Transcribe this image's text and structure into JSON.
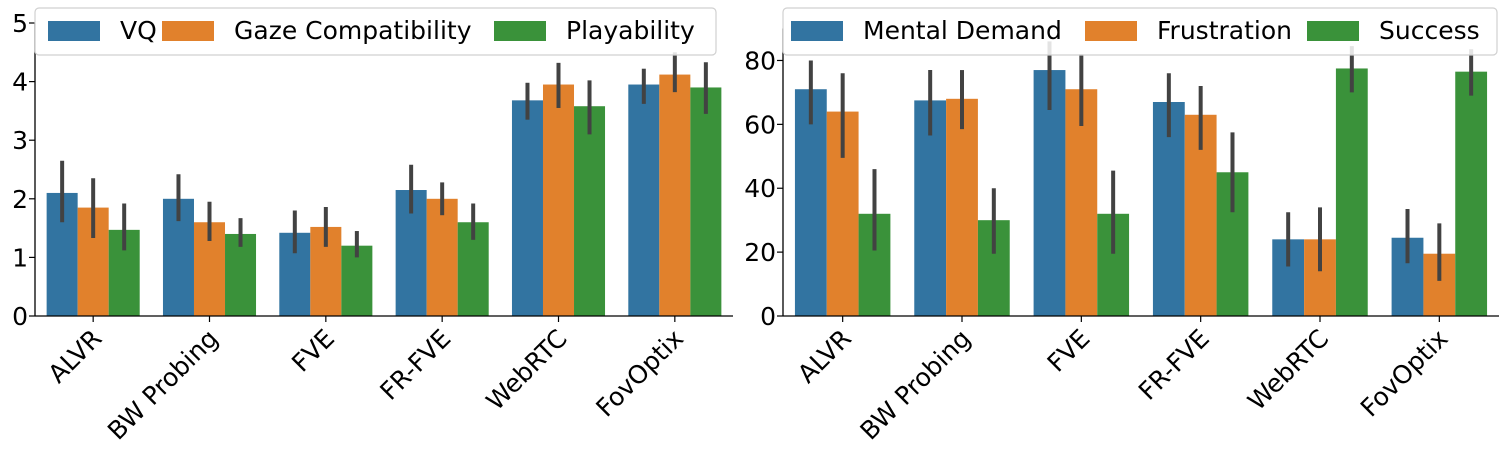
{
  "chart_data": [
    {
      "type": "bar",
      "categories": [
        "ALVR",
        "BW Probing",
        "FVE",
        "FR-FVE",
        "WebRTC",
        "FovOptix"
      ],
      "ylim": [
        0,
        5
      ],
      "yticks": [
        0,
        1,
        2,
        3,
        4,
        5
      ],
      "legend_position": "top",
      "series": [
        {
          "name": "VQ",
          "color": "#3274a1",
          "values": [
            2.1,
            2.0,
            1.42,
            2.15,
            3.68,
            3.95
          ],
          "ci": [
            [
              1.6,
              2.65
            ],
            [
              1.62,
              2.42
            ],
            [
              1.07,
              1.8
            ],
            [
              1.75,
              2.58
            ],
            [
              3.35,
              3.98
            ],
            [
              3.62,
              4.22
            ]
          ]
        },
        {
          "name": "Gaze Compatibility",
          "color": "#e1812c",
          "values": [
            1.85,
            1.6,
            1.52,
            2.0,
            3.95,
            4.12
          ],
          "ci": [
            [
              1.33,
              2.35
            ],
            [
              1.28,
              1.95
            ],
            [
              1.18,
              1.86
            ],
            [
              1.72,
              2.28
            ],
            [
              3.55,
              4.32
            ],
            [
              3.82,
              4.5
            ]
          ]
        },
        {
          "name": "Playability",
          "color": "#3a923a",
          "values": [
            1.47,
            1.4,
            1.2,
            1.6,
            3.58,
            3.9
          ],
          "ci": [
            [
              1.12,
              1.92
            ],
            [
              1.18,
              1.67
            ],
            [
              1.0,
              1.45
            ],
            [
              1.3,
              1.92
            ],
            [
              3.1,
              4.02
            ],
            [
              3.45,
              4.33
            ]
          ]
        }
      ]
    },
    {
      "type": "bar",
      "categories": [
        "ALVR",
        "BW Probing",
        "FVE",
        "FR-FVE",
        "WebRTC",
        "FovOptix"
      ],
      "ylim": [
        0,
        90
      ],
      "yticks": [
        0,
        20,
        40,
        60,
        80
      ],
      "legend_position": "top",
      "series": [
        {
          "name": "Mental Demand",
          "color": "#3274a1",
          "values": [
            71,
            67.5,
            77,
            67,
            24,
            24.5
          ],
          "ci": [
            [
              60,
              80
            ],
            [
              56.5,
              77
            ],
            [
              64.5,
              86
            ],
            [
              56,
              76
            ],
            [
              15.5,
              32.5
            ],
            [
              16.5,
              33.5
            ]
          ]
        },
        {
          "name": "Frustration",
          "color": "#e1812c",
          "values": [
            64,
            68,
            71,
            63,
            24,
            19.5
          ],
          "ci": [
            [
              49.5,
              76
            ],
            [
              58.5,
              77
            ],
            [
              59.5,
              82
            ],
            [
              52,
              72
            ],
            [
              14,
              34
            ],
            [
              11,
              29
            ]
          ]
        },
        {
          "name": "Success",
          "color": "#3a923a",
          "values": [
            32,
            30,
            32,
            45,
            77.5,
            76.5
          ],
          "ci": [
            [
              20.5,
              46
            ],
            [
              19.5,
              40
            ],
            [
              19.5,
              45.5
            ],
            [
              32.5,
              57.5
            ],
            [
              70,
              84.5
            ],
            [
              69,
              83.5
            ]
          ]
        }
      ]
    }
  ]
}
